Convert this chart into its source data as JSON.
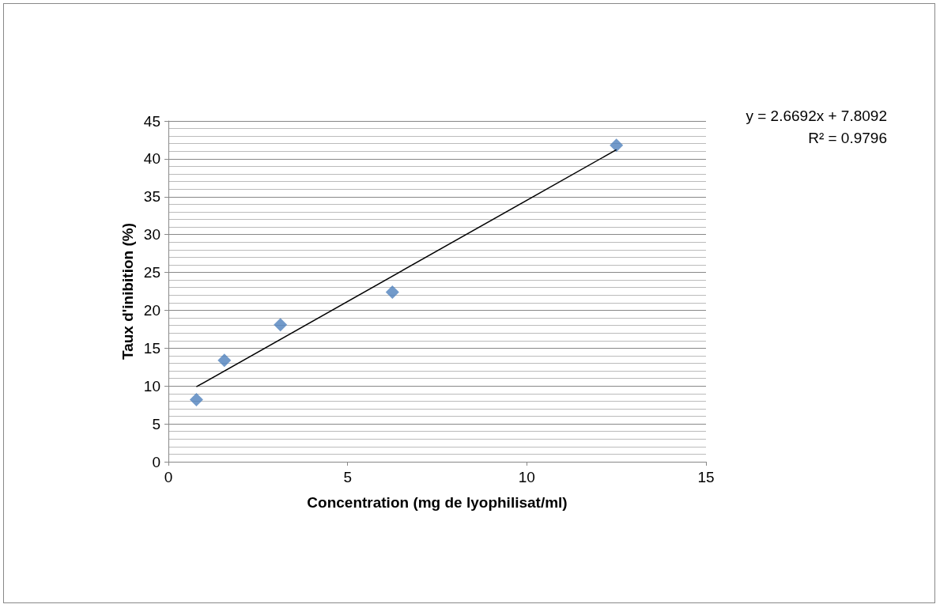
{
  "chart_data": {
    "type": "scatter",
    "xlabel": "Concentration (mg de lyophilisat/ml)",
    "ylabel": "Taux d'inibition (%)",
    "series": [
      {
        "color": "#4f81bd",
        "marker": "diamond",
        "x": [
          0.78125,
          1.5625,
          3.125,
          6.25,
          12.5
        ],
        "values": [
          8.2,
          13.4,
          18.1,
          22.4,
          41.8
        ]
      },
      {
        "type": "line",
        "color": "#000000",
        "marker": "none",
        "line_style": "solid",
        "x": [
          0.78125,
          12.5
        ],
        "values": [
          9.9,
          41.2
        ]
      }
    ],
    "xlim": [
      0,
      15
    ],
    "xticks": [
      0,
      5,
      10,
      15
    ],
    "ylim": [
      0,
      45
    ],
    "yticks": [
      0,
      5,
      10,
      15,
      20,
      25,
      30,
      35,
      40,
      45
    ],
    "grid": "y",
    "annotations": [
      "y = 2.6692x + 7.8092",
      "R² = 0.9796"
    ]
  }
}
